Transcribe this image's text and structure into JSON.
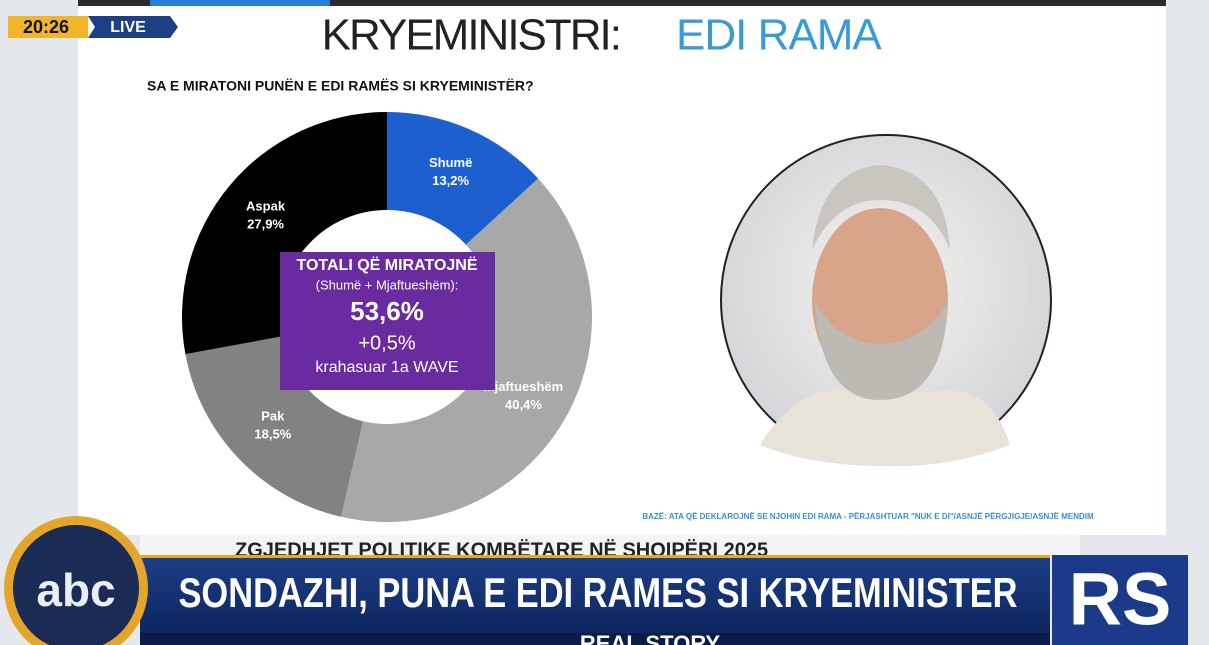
{
  "broadcast": {
    "clock": "20:26",
    "live": "LIVE",
    "channel": "abc",
    "upper_banner": "ZGJEDHJET POLITIKE KOMBËTARE NË SHQIPËRI 2025",
    "ticker": "SONDAZHI, PUNA E EDI RAMES SI KRYEMINISTER",
    "lower_banner": "REAL STORY",
    "show_logo": "RS"
  },
  "chart_data": {
    "type": "donut",
    "title": "KRYEMINISTRI:",
    "title_highlight": "EDI RAMA",
    "subtitle": "SA E MIRATONI PUNËN E EDI RAMËS SI KRYEMINISTËR?",
    "categories": [
      "Shumë",
      "Mjaftueshëm",
      "Pak",
      "Aspak"
    ],
    "values": [
      13.2,
      40.4,
      18.5,
      27.9
    ],
    "value_labels": [
      "13,2%",
      "40,4%",
      "18,5%",
      "27,9%"
    ],
    "colors": [
      "#1d5fcf",
      "#a8a8a8",
      "#828282",
      "#000000"
    ],
    "center_title": "TOTALI QË MIRATOJNË",
    "center_subtitle": "(Shumë + Mjaftueshëm):",
    "center_value": "53,6%",
    "center_change": "+0,5%",
    "center_note": "krahasuar 1a WAVE",
    "footnote": "BAZË: ATA QË DEKLAROJNË SE NJOHIN EDI RAMA - PËRJASHTUAR \"NUK E DI\"/ASNJË PËRGJIGJE/ASNJË MENDIM"
  }
}
